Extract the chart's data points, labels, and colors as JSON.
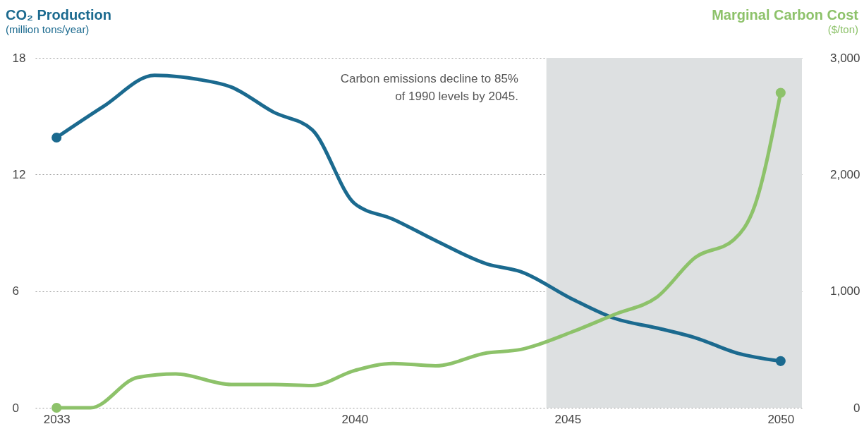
{
  "chart_data": {
    "type": "line",
    "ylabel": "CO₂ Production",
    "y2label": "Marginal Carbon Cost",
    "annotations": [
      "Carbon emissions decline to 85%\nof 1990 levels by 2045.",
      "(million tons/year)",
      "($/ton)"
    ],
    "xlim": [
      2032.5,
      2050.5
    ],
    "xticks": [
      2033,
      2040,
      2045,
      2050
    ],
    "ylim": [
      0,
      18
    ],
    "yticks": [
      0,
      6,
      12,
      18
    ],
    "y2lim": [
      0,
      3000
    ],
    "y2ticks": [
      0,
      {
        "value": 1000,
        "label": "1,000"
      },
      {
        "value": 2000,
        "label": "2,000"
      },
      {
        "value": 3000,
        "label": "3,000"
      }
    ],
    "grid": "y",
    "line_style": "solid",
    "bands": [
      {
        "axis": "x",
        "from": 2044.5,
        "to": 2050.5,
        "color": "#dde0e1"
      }
    ],
    "series": [
      {
        "color": "#1b6a8f",
        "x": [
          2033,
          2034.1,
          2035.3,
          2036.3,
          2037.1,
          2038.1,
          2039,
          2040,
          2040.9,
          2041.9,
          2043.1,
          2043.9,
          2045.1,
          2046.1,
          2047.1,
          2048,
          2049,
          2050
        ],
        "values": [
          13.9,
          15.5,
          17.1,
          16.9,
          16.5,
          15.2,
          14.3,
          10.5,
          9.7,
          8.6,
          7.4,
          7,
          5.6,
          4.6,
          4.1,
          3.6,
          2.8,
          2.4
        ]
      },
      {
        "color": "#8dc26a",
        "axis": "y2",
        "x": [
          2033,
          2033.8,
          2034.9,
          2035.8,
          2037.1,
          2038.1,
          2039,
          2040,
          2040.9,
          2041.9,
          2043.1,
          2043.9,
          2045.1,
          2046.1,
          2047.1,
          2048,
          2048.9,
          2049.4,
          2050
        ],
        "values": [
          0,
          0,
          260,
          290,
          200,
          200,
          190,
          320,
          380,
          360,
          470,
          500,
          650,
          800,
          950,
          1290,
          1440,
          1740,
          2700
        ]
      }
    ]
  }
}
